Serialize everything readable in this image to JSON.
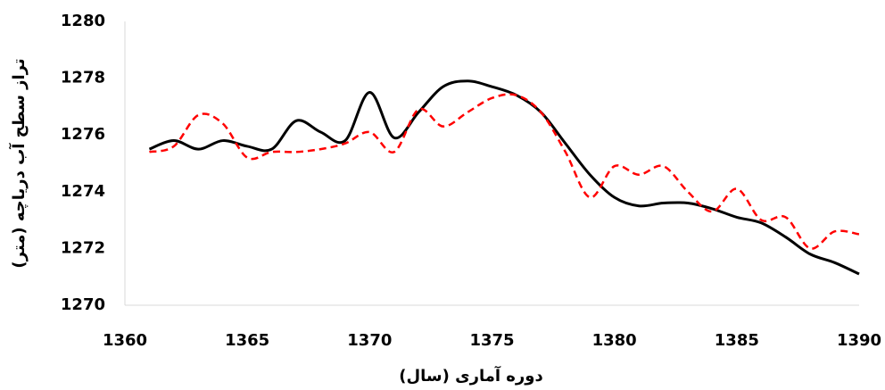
{
  "chart_data": {
    "type": "line",
    "x_label": "دوره آماری (سال)",
    "y_label": "تراز سطح آب دریاچه (متر)",
    "x": [
      1361,
      1362,
      1363,
      1364,
      1365,
      1366,
      1367,
      1368,
      1369,
      1370,
      1371,
      1372,
      1373,
      1374,
      1375,
      1376,
      1377,
      1378,
      1379,
      1380,
      1381,
      1382,
      1383,
      1384,
      1385,
      1386,
      1387,
      1388,
      1389,
      1390
    ],
    "series": [
      {
        "color": "#000000",
        "style": "solid",
        "values": [
          1275.5,
          1275.8,
          1275.5,
          1275.8,
          1275.6,
          1275.5,
          1276.5,
          1276.1,
          1275.8,
          1277.5,
          1275.9,
          1276.8,
          1277.7,
          1277.9,
          1277.7,
          1277.4,
          1276.8,
          1275.7,
          1274.6,
          1273.8,
          1273.5,
          1273.6,
          1273.6,
          1273.4,
          1273.1,
          1272.9,
          1272.4,
          1271.8,
          1271.5,
          1271.1
        ]
      },
      {
        "color": "#ff0000",
        "style": "dashed",
        "values": [
          1275.4,
          1275.6,
          1276.7,
          1276.4,
          1275.2,
          1275.4,
          1275.4,
          1275.5,
          1275.7,
          1276.1,
          1275.4,
          1276.9,
          1276.3,
          1276.8,
          1277.3,
          1277.4,
          1276.8,
          1275.4,
          1273.8,
          1274.9,
          1274.6,
          1274.9,
          1274.0,
          1273.3,
          1274.1,
          1273.0,
          1273.1,
          1272.0,
          1272.6,
          1272.5
        ]
      }
    ],
    "xlim": [
      1360,
      1390
    ],
    "xticks": [
      1360,
      1365,
      1370,
      1375,
      1380,
      1385,
      1390
    ],
    "ylim": [
      1270,
      1280
    ],
    "yticks": [
      1270,
      1272,
      1274,
      1276,
      1278,
      1280
    ],
    "grid": false
  }
}
